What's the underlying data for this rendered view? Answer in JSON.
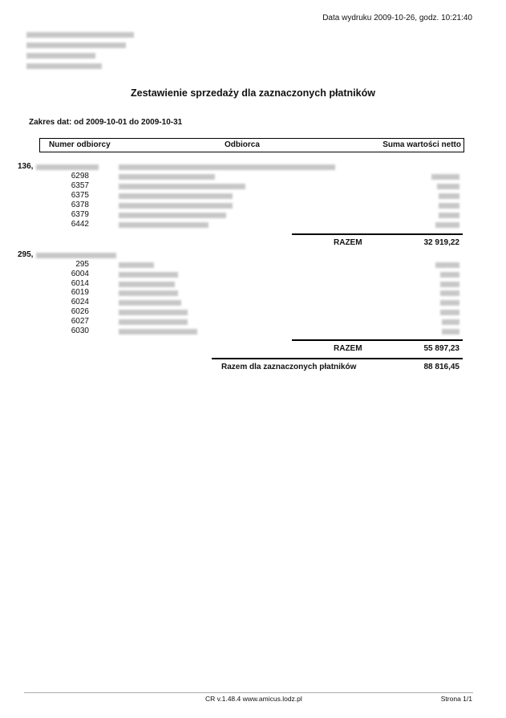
{
  "print_date": "Data wydruku 2009-10-26, godz. 10:21:40",
  "title": "Zestawienie sprzedaży dla zaznaczonych płatników",
  "date_range": "Zakres dat: od 2009-10-01 do 2009-10-31",
  "table_header": {
    "col1": "Numer odbiorcy",
    "col2": "Odbiorca",
    "col3": "Suma wartości netto"
  },
  "groups": [
    {
      "payer_id": "136,",
      "recipients": [
        "6298",
        "6357",
        "6375",
        "6378",
        "6379",
        "6442"
      ],
      "total_label": "RAZEM",
      "total": "32 919,22"
    },
    {
      "payer_id": "295,",
      "recipients": [
        "295",
        "6004",
        "6014",
        "6019",
        "6024",
        "6026",
        "6027",
        "6030"
      ],
      "total_label": "RAZEM",
      "total": "55 897,23"
    }
  ],
  "grand_total_label": "Razem dla zaznaczonych płatników",
  "grand_total": "88 816,45",
  "footer": {
    "version": "CR v.1.48.4 www.amicus.lodz.pl",
    "page": "Strona 1/1"
  }
}
